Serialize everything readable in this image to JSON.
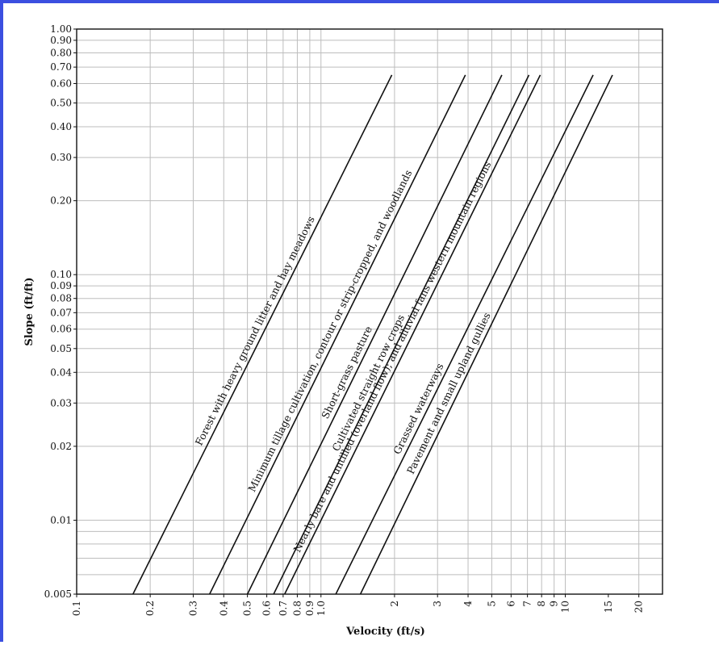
{
  "chart_data": {
    "type": "line",
    "title": "",
    "xlabel": "Velocity (ft/s)",
    "ylabel": "Slope (ft/ft)",
    "x_scale": "log",
    "y_scale": "log",
    "xlim": [
      0.1,
      25
    ],
    "ylim": [
      0.005,
      1.0
    ],
    "grid": true,
    "legend": "none",
    "x_ticks": [
      "0.1",
      "0.2",
      "0.3",
      "0.4",
      "0.5",
      "0.6",
      "0.7",
      "0.8",
      "0.9",
      "1.0",
      "2",
      "3",
      "4",
      "5",
      "6",
      "7",
      "8",
      "9",
      "10",
      "15",
      "20"
    ],
    "y_ticks": [
      "0.005",
      "0.01",
      "0.02",
      "0.03",
      "0.04",
      "0.05",
      "0.06",
      "0.07",
      "0.08",
      "0.09",
      "0.10",
      "0.20",
      "0.30",
      "0.40",
      "0.50",
      "0.60",
      "0.70",
      "0.80",
      "0.90",
      "1.00"
    ],
    "series": [
      {
        "name": "Forest with heavy ground litter and hay meadows",
        "x": [
          0.17,
          1.95
        ],
        "y": [
          0.005,
          0.65
        ]
      },
      {
        "name": "Minimum tillage cultivation, contour or strip-cropped, and woodlands",
        "x": [
          0.35,
          3.9
        ],
        "y": [
          0.005,
          0.65
        ]
      },
      {
        "name": "Short-grass pasture",
        "x": [
          0.5,
          5.5
        ],
        "y": [
          0.005,
          0.65
        ]
      },
      {
        "name": "Cultivated straight row crops",
        "x": [
          0.64,
          7.1
        ],
        "y": [
          0.005,
          0.65
        ]
      },
      {
        "name": "Nearly bare and untilled (overland flow); and alluvial fans western mountain regions",
        "x": [
          0.71,
          7.9
        ],
        "y": [
          0.005,
          0.65
        ]
      },
      {
        "name": "Grassed waterways",
        "x": [
          1.15,
          13.0
        ],
        "y": [
          0.005,
          0.65
        ]
      },
      {
        "name": "Pavement and small upland gullies",
        "x": [
          1.45,
          15.6
        ],
        "y": [
          0.005,
          0.65
        ]
      }
    ]
  }
}
